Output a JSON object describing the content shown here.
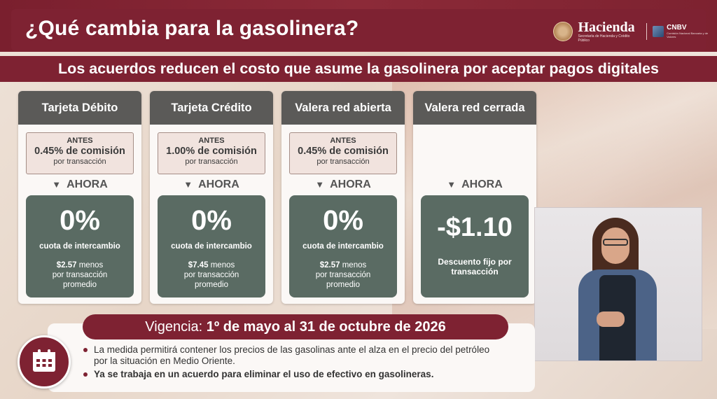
{
  "header": {
    "title": "¿Qué cambia para la gasolinera?",
    "subtitle": "Los acuerdos reducen el costo que asume la gasolinera por aceptar pagos digitales",
    "logo_hacienda": "Hacienda",
    "logo_hacienda_sub": "Secretaría de Hacienda y Crédito Público",
    "logo_cnbv": "CNBV",
    "logo_cnbv_sub": "Comisión Nacional Bancaria y de Valores"
  },
  "cards": [
    {
      "title": "Tarjeta Débito",
      "antes_label": "ANTES",
      "antes_pct": "0.45% de comisión",
      "antes_per": "por transacción",
      "ahora": "AHORA",
      "value": "0%",
      "fee": "cuota de intercambio",
      "less_amount": "$2.57",
      "less_text": " menos",
      "less_rest1": "por transacción",
      "less_rest2": "promedio"
    },
    {
      "title": "Tarjeta Crédito",
      "antes_label": "ANTES",
      "antes_pct": "1.00% de comisión",
      "antes_per": "por transacción",
      "ahora": "AHORA",
      "value": "0%",
      "fee": "cuota de intercambio",
      "less_amount": "$7.45",
      "less_text": " menos",
      "less_rest1": "por transacción",
      "less_rest2": "promedio"
    },
    {
      "title": "Valera red abierta",
      "antes_label": "ANTES",
      "antes_pct": "0.45% de comisión",
      "antes_per": "por transacción",
      "ahora": "AHORA",
      "value": "0%",
      "fee": "cuota de intercambio",
      "less_amount": "$2.57",
      "less_text": " menos",
      "less_rest1": "por transacción",
      "less_rest2": "promedio"
    },
    {
      "title": "Valera red cerrada",
      "ahora": "AHORA",
      "value": "-$1.10",
      "desc1": "Descuento fijo por",
      "desc2": "transacción"
    }
  ],
  "vigencia": {
    "label": "Vigencia:",
    "dates": "1º de mayo al 31 de octubre de 2026"
  },
  "bullets": [
    "La medida permitirá contener los precios de las gasolinas ante el alza en el precio del petróleo por la situación en Medio Oriente.",
    "Ya se trabaja en un acuerdo para eliminar el uso de efectivo en gasolineras."
  ],
  "icons": {
    "calendar": "calendar-icon",
    "arrow": "triangle-down-icon"
  },
  "colors": {
    "brand": "#7e2232",
    "card_head": "#5b5a58",
    "green_box": "#5a6b63",
    "antes_box": "#f1e3de"
  }
}
